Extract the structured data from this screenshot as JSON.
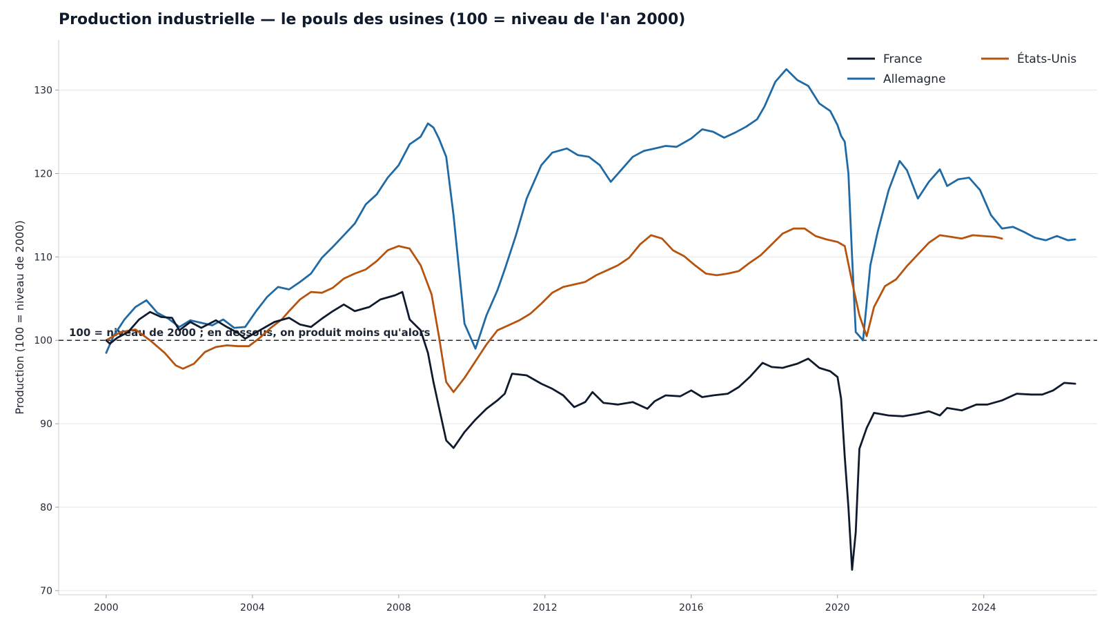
{
  "chart_data": {
    "type": "line",
    "title": "Production industrielle — le pouls des usines (100 = niveau de l'an 2000)",
    "ylabel": "Production (100 = niveau de 2000)",
    "xlabel": "",
    "xlim": [
      1998.7,
      2027.1
    ],
    "ylim": [
      69.5,
      136
    ],
    "x_ticks": [
      "2000",
      "2004",
      "2008",
      "2012",
      "2016",
      "2020",
      "2024"
    ],
    "y_ticks": [
      "70",
      "80",
      "90",
      "100",
      "110",
      "120",
      "130"
    ],
    "grid": "horizontal",
    "legend_position": "top-right",
    "legend_labels": [
      "France",
      "Allemagne",
      "États-Unis"
    ],
    "reference_line": {
      "y": 100,
      "label": "100 = niveau de 2000 ; en dessous, on produit moins qu'alors"
    },
    "colors": {
      "France": "#0f1b2d",
      "Allemagne": "#1f6aa5",
      "États-Unis": "#b5530f",
      "reference": "#1f2633"
    },
    "series": [
      {
        "name": "France",
        "x": [
          2000.0,
          2000.1,
          2000.3,
          2000.6,
          2000.9,
          2001.2,
          2001.5,
          2001.8,
          2002.0,
          2002.3,
          2002.6,
          2003.0,
          2003.3,
          2003.6,
          2003.8,
          2004.2,
          2004.6,
          2005.0,
          2005.3,
          2005.6,
          2005.9,
          2006.2,
          2006.5,
          2006.8,
          2007.2,
          2007.5,
          2007.9,
          2008.1,
          2008.3,
          2008.6,
          2008.8,
          2008.95,
          2009.1,
          2009.3,
          2009.5,
          2009.8,
          2010.1,
          2010.4,
          2010.7,
          2010.9,
          2011.1,
          2011.5,
          2011.9,
          2012.2,
          2012.5,
          2012.8,
          2013.1,
          2013.3,
          2013.6,
          2014.0,
          2014.4,
          2014.8,
          2015.0,
          2015.3,
          2015.7,
          2016.0,
          2016.3,
          2016.6,
          2017.0,
          2017.3,
          2017.6,
          2017.95,
          2018.2,
          2018.5,
          2018.9,
          2019.2,
          2019.5,
          2019.8,
          2020.0,
          2020.1,
          2020.2,
          2020.3,
          2020.4,
          2020.5,
          2020.6,
          2020.8,
          2021.0,
          2021.4,
          2021.8,
          2022.2,
          2022.5,
          2022.8,
          2023.0,
          2023.4,
          2023.8,
          2024.1,
          2024.5,
          2024.9,
          2025.3,
          2025.6,
          2025.9,
          2026.2,
          2026.5
        ],
        "values": [
          100.0,
          99.6,
          100.3,
          101.0,
          102.5,
          103.4,
          102.8,
          102.7,
          101.2,
          102.2,
          101.5,
          102.4,
          101.6,
          100.9,
          100.2,
          101.2,
          102.2,
          102.7,
          101.9,
          101.6,
          102.6,
          103.5,
          104.3,
          103.5,
          104.0,
          104.9,
          105.4,
          105.8,
          102.5,
          101.2,
          98.5,
          95.0,
          92.0,
          88.0,
          87.1,
          89.0,
          90.5,
          91.8,
          92.8,
          93.6,
          96.0,
          95.8,
          94.8,
          94.2,
          93.4,
          92.0,
          92.6,
          93.8,
          92.5,
          92.3,
          92.6,
          91.8,
          92.7,
          93.4,
          93.3,
          94.0,
          93.2,
          93.4,
          93.6,
          94.4,
          95.6,
          97.3,
          96.8,
          96.7,
          97.2,
          97.8,
          96.7,
          96.3,
          95.6,
          93.0,
          86.0,
          80.0,
          72.5,
          77.0,
          87.0,
          89.5,
          91.3,
          91.0,
          90.9,
          91.2,
          91.5,
          91.0,
          91.9,
          91.6,
          92.3,
          92.3,
          92.8,
          93.6,
          93.5,
          93.5,
          94.0,
          94.9,
          94.8
        ]
      },
      {
        "name": "Allemagne",
        "x": [
          2000.0,
          2000.2,
          2000.5,
          2000.8,
          2001.1,
          2001.4,
          2001.7,
          2002.0,
          2002.3,
          2002.6,
          2002.9,
          2003.2,
          2003.5,
          2003.8,
          2004.1,
          2004.4,
          2004.7,
          2005.0,
          2005.3,
          2005.6,
          2005.9,
          2006.2,
          2006.5,
          2006.8,
          2007.1,
          2007.4,
          2007.7,
          2008.0,
          2008.3,
          2008.6,
          2008.8,
          2008.95,
          2009.1,
          2009.3,
          2009.5,
          2009.8,
          2010.1,
          2010.4,
          2010.7,
          2010.9,
          2011.2,
          2011.5,
          2011.9,
          2012.2,
          2012.6,
          2012.9,
          2013.2,
          2013.5,
          2013.8,
          2014.1,
          2014.4,
          2014.7,
          2015.0,
          2015.3,
          2015.6,
          2016.0,
          2016.3,
          2016.6,
          2016.9,
          2017.2,
          2017.5,
          2017.8,
          2018.0,
          2018.3,
          2018.6,
          2018.9,
          2019.2,
          2019.5,
          2019.8,
          2020.0,
          2020.1,
          2020.2,
          2020.3,
          2020.4,
          2020.5,
          2020.7,
          2020.9,
          2021.1,
          2021.4,
          2021.7,
          2021.9,
          2022.2,
          2022.5,
          2022.8,
          2023.0,
          2023.3,
          2023.6,
          2023.9,
          2024.2,
          2024.5,
          2024.8,
          2025.1,
          2025.4,
          2025.7,
          2026.0,
          2026.3,
          2026.5
        ],
        "values": [
          98.5,
          100.5,
          102.5,
          104.0,
          104.8,
          103.3,
          102.6,
          101.6,
          102.4,
          102.1,
          101.8,
          102.5,
          101.5,
          101.6,
          103.5,
          105.2,
          106.4,
          106.1,
          107.0,
          108.0,
          109.9,
          111.2,
          112.6,
          114.0,
          116.3,
          117.5,
          119.5,
          121.0,
          123.5,
          124.4,
          126.0,
          125.5,
          124.2,
          122.0,
          115.0,
          102.0,
          99.0,
          103.0,
          106.0,
          108.5,
          112.5,
          117.0,
          121.0,
          122.5,
          123.0,
          122.2,
          122.0,
          121.0,
          119.0,
          120.5,
          122.0,
          122.7,
          123.0,
          123.3,
          123.2,
          124.2,
          125.3,
          125.0,
          124.3,
          124.9,
          125.6,
          126.5,
          128.0,
          131.0,
          132.5,
          131.2,
          130.5,
          128.4,
          127.5,
          125.8,
          124.5,
          123.8,
          120.0,
          110.0,
          101.0,
          100.0,
          109.0,
          113.0,
          118.0,
          121.5,
          120.4,
          117.0,
          119.0,
          120.5,
          118.5,
          119.3,
          119.5,
          118.0,
          115.0,
          113.4,
          113.6,
          113.0,
          112.3,
          112.0,
          112.5,
          112.0,
          112.1
        ]
      },
      {
        "name": "États-Unis",
        "x": [
          2000.0,
          2000.4,
          2000.8,
          2001.2,
          2001.6,
          2001.9,
          2002.1,
          2002.4,
          2002.7,
          2003.0,
          2003.3,
          2003.6,
          2003.9,
          2004.2,
          2004.5,
          2004.8,
          2005.0,
          2005.3,
          2005.6,
          2005.9,
          2006.2,
          2006.5,
          2006.8,
          2007.1,
          2007.4,
          2007.7,
          2008.0,
          2008.3,
          2008.6,
          2008.9,
          2009.1,
          2009.3,
          2009.5,
          2009.8,
          2010.1,
          2010.4,
          2010.7,
          2011.0,
          2011.3,
          2011.6,
          2011.9,
          2012.2,
          2012.5,
          2012.8,
          2013.1,
          2013.4,
          2013.7,
          2014.0,
          2014.3,
          2014.6,
          2014.9,
          2015.2,
          2015.5,
          2015.8,
          2016.1,
          2016.4,
          2016.7,
          2017.0,
          2017.3,
          2017.6,
          2017.9,
          2018.2,
          2018.5,
          2018.8,
          2019.1,
          2019.4,
          2019.7,
          2020.0,
          2020.2,
          2020.4,
          2020.6,
          2020.8,
          2021.0,
          2021.3,
          2021.6,
          2021.9,
          2022.2,
          2022.5,
          2022.8,
          2023.1,
          2023.4,
          2023.7,
          2024.0,
          2024.3,
          2024.5
        ],
        "values": [
          100.0,
          101.0,
          101.3,
          100.0,
          98.5,
          97.0,
          96.6,
          97.2,
          98.6,
          99.2,
          99.4,
          99.3,
          99.3,
          100.3,
          101.5,
          102.5,
          103.5,
          104.9,
          105.8,
          105.7,
          106.3,
          107.4,
          108.0,
          108.5,
          109.5,
          110.8,
          111.3,
          111.0,
          109.0,
          105.5,
          100.5,
          95.0,
          93.8,
          95.5,
          97.5,
          99.5,
          101.2,
          101.8,
          102.4,
          103.2,
          104.4,
          105.7,
          106.4,
          106.7,
          107.0,
          107.8,
          108.4,
          109.0,
          109.9,
          111.5,
          112.6,
          112.2,
          110.8,
          110.1,
          109.0,
          108.0,
          107.8,
          108.0,
          108.3,
          109.3,
          110.2,
          111.5,
          112.8,
          113.4,
          113.4,
          112.5,
          112.1,
          111.8,
          111.3,
          107.0,
          103.0,
          100.5,
          104.0,
          106.5,
          107.3,
          108.9,
          110.3,
          111.7,
          112.6,
          112.4,
          112.2,
          112.6,
          112.5,
          112.4,
          112.2
        ]
      }
    ]
  }
}
